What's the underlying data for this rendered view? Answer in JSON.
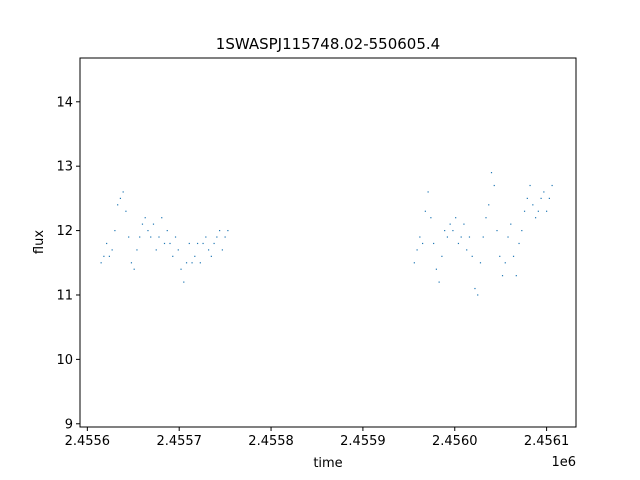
{
  "chart_data": {
    "type": "scatter",
    "title": "1SWASPJ115748.02-550605.4",
    "xlabel": "time",
    "ylabel": "flux",
    "x_offset_label": "1e6",
    "x_tick_values": [
      2.4556,
      2.4557,
      2.4558,
      2.4559,
      2.456,
      2.4561
    ],
    "x_tick_labels": [
      "2.4556",
      "2.4557",
      "2.4558",
      "2.4559",
      "2.4560",
      "2.4561"
    ],
    "y_tick_values": [
      9,
      10,
      11,
      12,
      13,
      14
    ],
    "y_tick_labels": [
      "9",
      "10",
      "11",
      "12",
      "13",
      "14"
    ],
    "xlim": [
      2.455592,
      2.456132
    ],
    "ylim": [
      8.95,
      14.68
    ],
    "grid": false,
    "legend": "none",
    "marker_color": "#1f77b4",
    "series": [
      {
        "x": [
          2.455615,
          2.455618,
          2.455621,
          2.455624,
          2.455627,
          2.45563,
          2.455633,
          2.455636,
          2.455639,
          2.455642,
          2.455645,
          2.455648,
          2.455651,
          2.455654,
          2.455657,
          2.45566,
          2.455663,
          2.455666,
          2.455669,
          2.455672,
          2.455675,
          2.455678,
          2.455681,
          2.455684,
          2.455687,
          2.45569,
          2.455693,
          2.455696,
          2.455699,
          2.455702,
          2.455705,
          2.455708,
          2.455711,
          2.455714,
          2.455717,
          2.45572,
          2.455723,
          2.455726,
          2.455729,
          2.455732,
          2.455735,
          2.455738,
          2.455741,
          2.455744,
          2.455747,
          2.45575,
          2.455753,
          2.455956,
          2.455959,
          2.455962,
          2.455965,
          2.455968,
          2.455971,
          2.455974,
          2.455977,
          2.45598,
          2.455983,
          2.455986,
          2.455989,
          2.455992,
          2.455995,
          2.455998,
          2.456001,
          2.456004,
          2.456007,
          2.45601,
          2.456013,
          2.456016,
          2.456019,
          2.456022,
          2.456025,
          2.456028,
          2.456031,
          2.456034,
          2.456037,
          2.45604,
          2.456043,
          2.456046,
          2.456049,
          2.456052,
          2.456055,
          2.456058,
          2.456061,
          2.456064,
          2.456067,
          2.45607,
          2.456073,
          2.456076,
          2.456079,
          2.456082,
          2.456085,
          2.456088,
          2.456091,
          2.456094,
          2.456097,
          2.4561,
          2.456103,
          2.456106
        ],
        "y": [
          11.5,
          11.6,
          11.8,
          11.6,
          11.7,
          12.0,
          12.4,
          12.5,
          12.6,
          12.3,
          11.9,
          11.5,
          11.4,
          11.7,
          11.9,
          12.1,
          12.2,
          12.0,
          11.9,
          12.1,
          11.7,
          11.9,
          12.2,
          11.8,
          12.0,
          11.8,
          11.6,
          11.9,
          11.7,
          11.4,
          11.2,
          11.5,
          11.8,
          11.5,
          11.6,
          11.8,
          11.5,
          11.8,
          11.9,
          11.7,
          11.6,
          11.8,
          11.9,
          12.0,
          11.7,
          11.9,
          12.0,
          11.5,
          11.7,
          11.9,
          11.8,
          12.3,
          12.6,
          12.2,
          11.8,
          11.4,
          11.2,
          11.6,
          12.0,
          11.9,
          12.1,
          12.0,
          12.2,
          11.8,
          11.9,
          12.1,
          11.7,
          11.9,
          11.6,
          11.1,
          11.0,
          11.5,
          11.9,
          12.2,
          12.4,
          12.9,
          12.7,
          12.0,
          11.6,
          11.3,
          11.5,
          11.9,
          12.1,
          11.6,
          11.3,
          11.8,
          12.0,
          12.3,
          12.5,
          12.7,
          12.4,
          12.2,
          12.3,
          12.5,
          12.6,
          12.3,
          12.5,
          12.7
        ]
      }
    ]
  }
}
